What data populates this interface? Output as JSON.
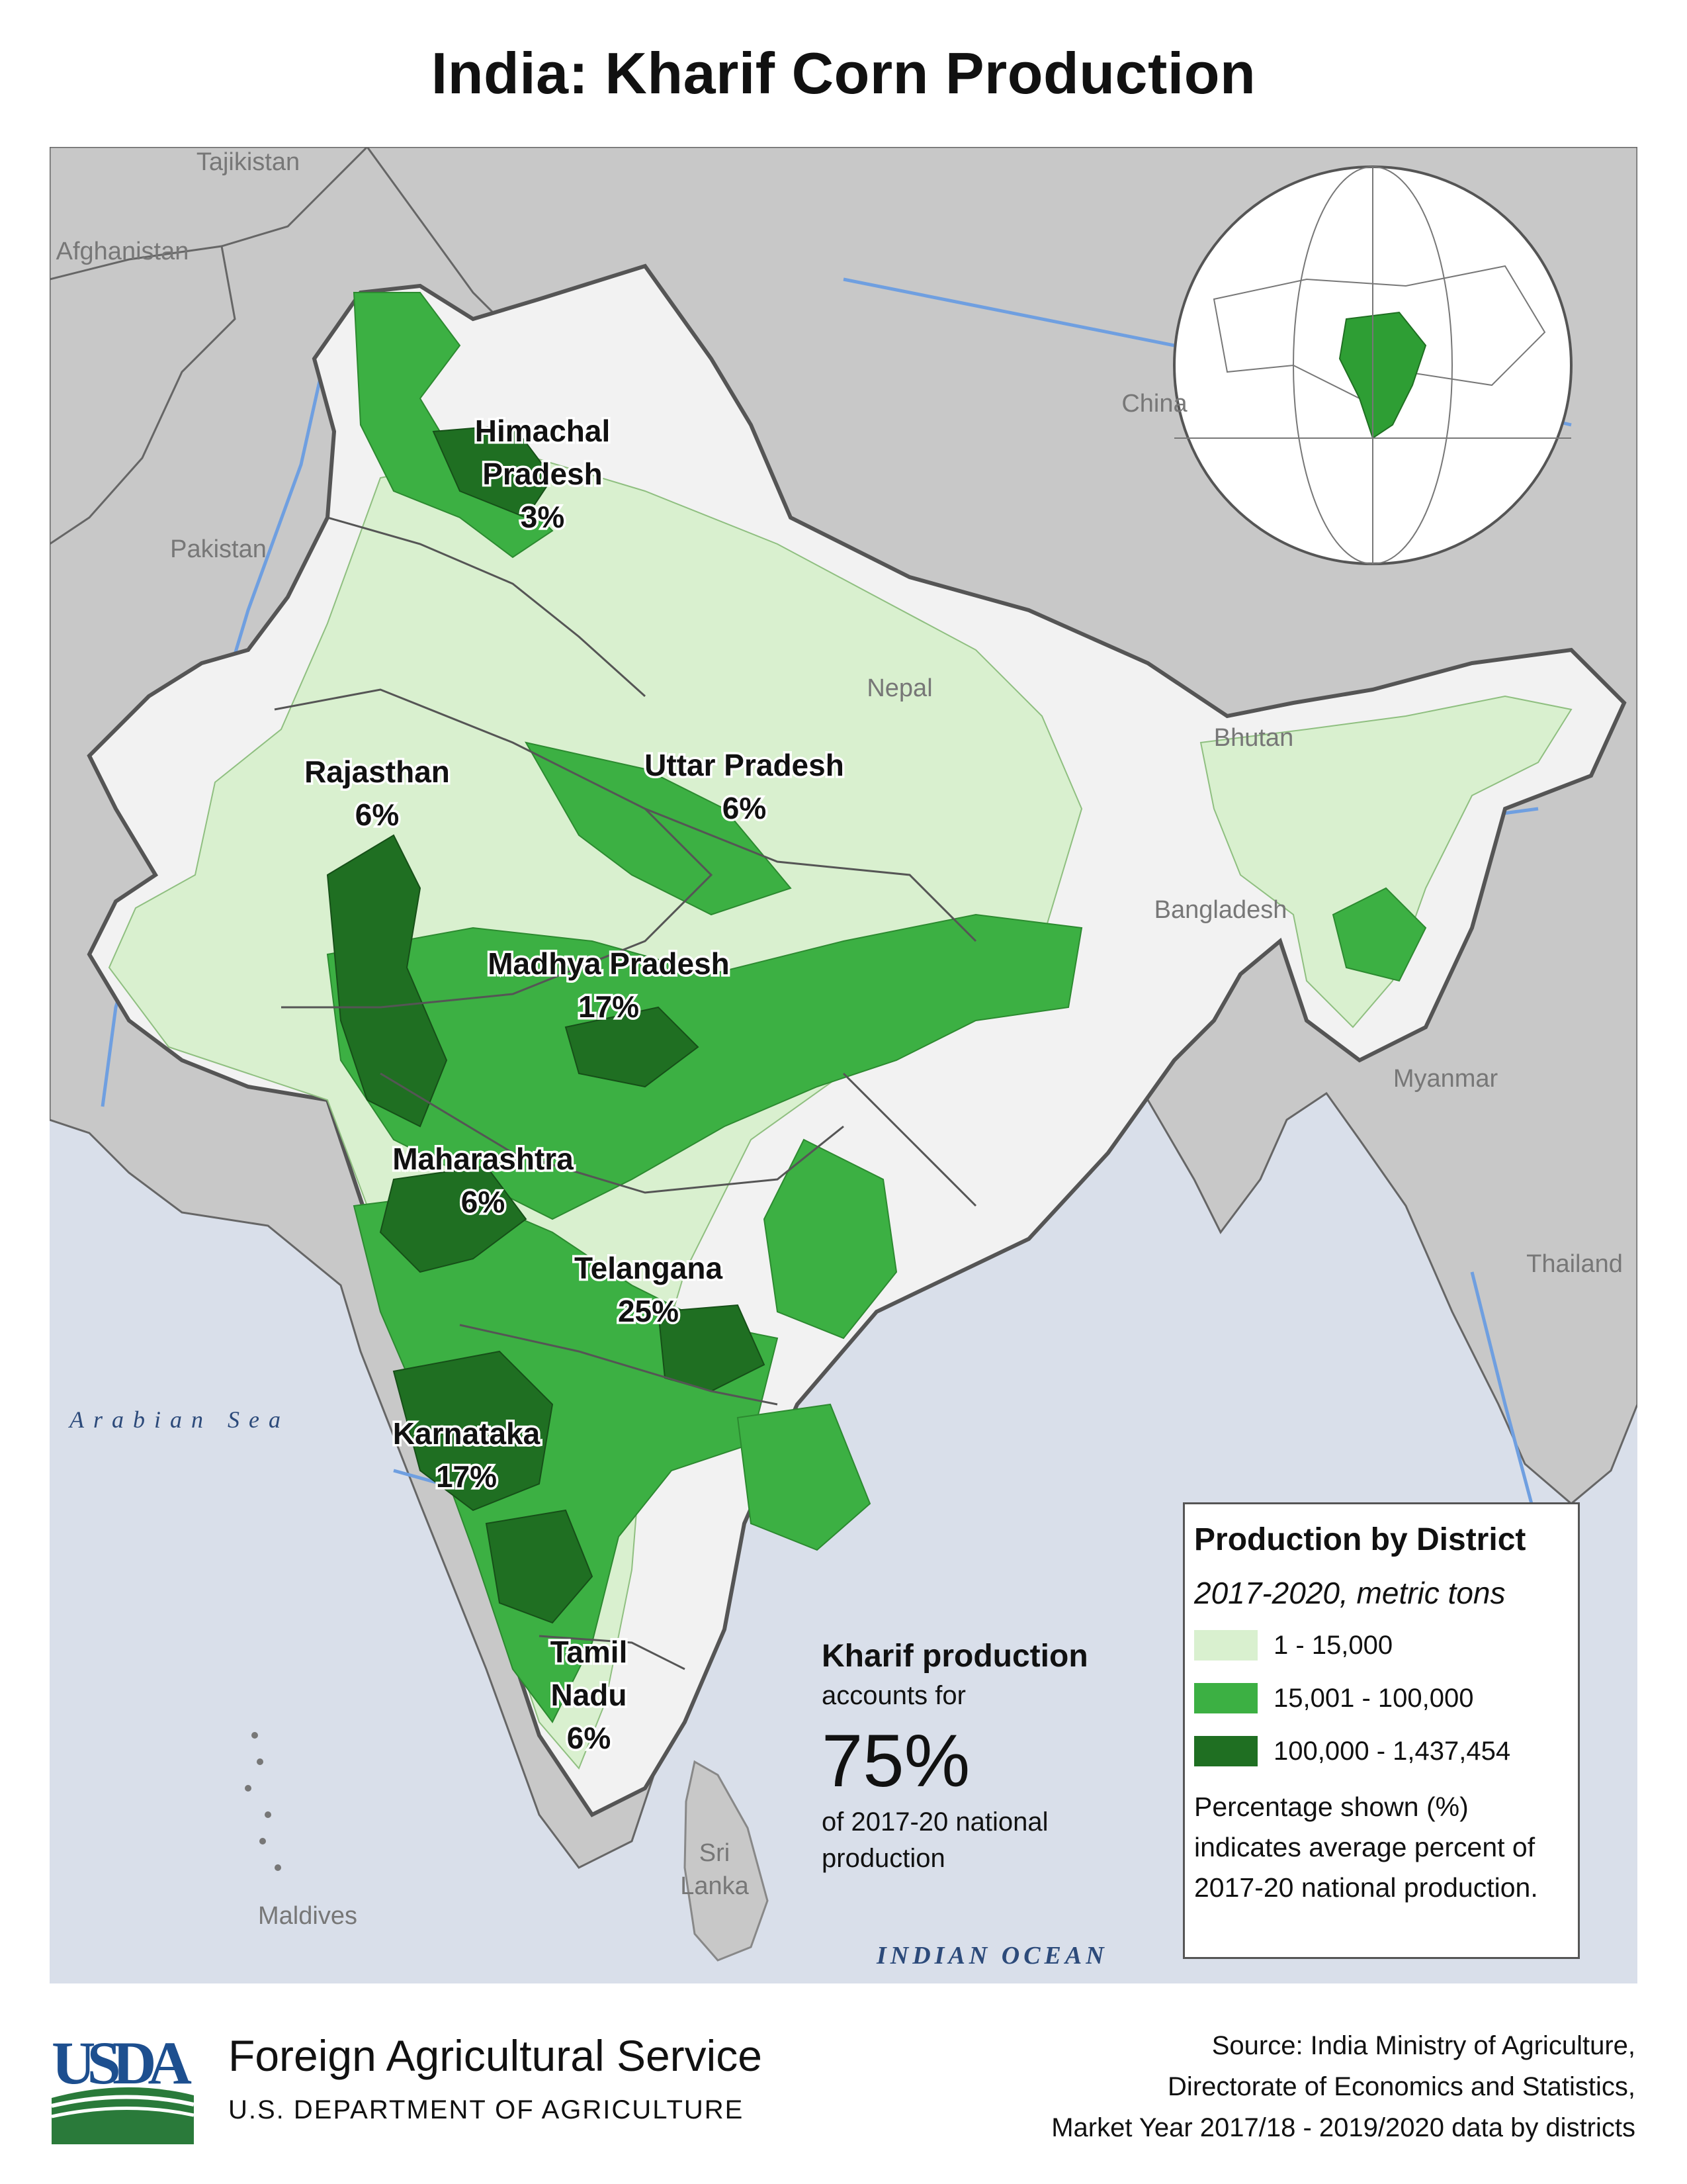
{
  "title": "India: Kharif Corn Production",
  "colors": {
    "sea": "#d9dfea",
    "land": "#c8c8c8",
    "india_low": "#d9f0cf",
    "india_mid": "#3cb043",
    "india_high": "#1f6f22",
    "india_none": "#f2f2f2",
    "border": "#555555",
    "river": "#6f9fe0"
  },
  "countries": {
    "tajikistan": "Tajikistan",
    "afghanistan": "Afghanistan",
    "pakistan": "Pakistan",
    "china": "China",
    "nepal": "Nepal",
    "bhutan": "Bhutan",
    "bangladesh": "Bangladesh",
    "myanmar": "Myanmar",
    "thailand": "Thailand",
    "sri_lanka_1": "Sri",
    "sri_lanka_2": "Lanka",
    "maldives": "Maldives"
  },
  "seas": {
    "arabian": "Arabian Sea",
    "indian_ocean": "INDIAN OCEAN"
  },
  "states": {
    "himachal_1": "Himachal",
    "himachal_2": "Pradesh",
    "himachal_pct": "3%",
    "rajasthan": "Rajasthan",
    "rajasthan_pct": "6%",
    "uttar": "Uttar Pradesh",
    "uttar_pct": "6%",
    "madhya": "Madhya Pradesh",
    "madhya_pct": "17%",
    "maharashtra": "Maharashtra",
    "maharashtra_pct": "6%",
    "telangana": "Telangana",
    "telangana_pct": "25%",
    "karnataka": "Karnataka",
    "karnataka_pct": "17%",
    "tamil_1": "Tamil",
    "tamil_2": "Nadu",
    "tamil_pct": "6%"
  },
  "callout": {
    "heading": "Kharif production",
    "line1": "accounts for",
    "big": "75%",
    "line2": "of 2017-20 national",
    "line3": "production"
  },
  "legend": {
    "title": "Production by District",
    "subtitle": "2017-2020, metric tons",
    "classes": [
      {
        "label": "1 - 15,000",
        "color": "#d9f0cf"
      },
      {
        "label": "15,001 - 100,000",
        "color": "#3cb043"
      },
      {
        "label": "100,000 - 1,437,454",
        "color": "#1f6f22"
      }
    ],
    "note_1": "Percentage shown (%)",
    "note_2": "indicates average percent of",
    "note_3": "2017-20 national production."
  },
  "footer": {
    "logo": "USDA",
    "agency": "Foreign Agricultural Service",
    "department": "U.S. DEPARTMENT OF AGRICULTURE",
    "source_1": "Source: India Ministry of Agriculture,",
    "source_2": "Directorate of Economics and Statistics,",
    "source_3": "Market Year 2017/18 - 2019/2020 data by districts"
  }
}
